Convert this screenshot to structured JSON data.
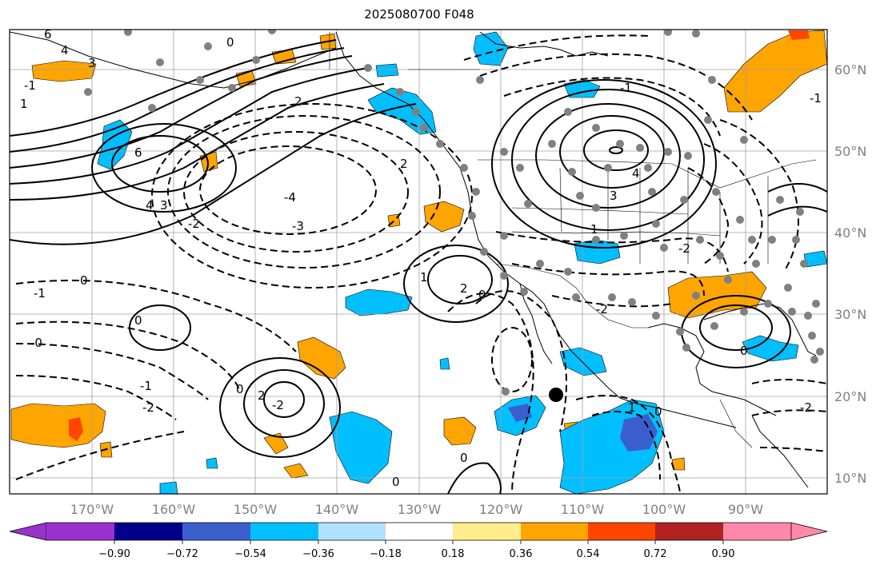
{
  "title": "2025080700 F048",
  "lat_labels": [
    "60°N",
    "50°N",
    "40°N",
    "30°N",
    "20°N",
    "10°N"
  ],
  "lon_labels": [
    "170°W",
    "160°W",
    "150°W",
    "140°W",
    "130°W",
    "120°W",
    "110°W",
    "100°W",
    "90°W"
  ],
  "colorbar": {
    "tick_labels": [
      "−0.90",
      "−0.72",
      "−0.54",
      "−0.36",
      "−0.18",
      "0.18",
      "0.36",
      "0.54",
      "0.72",
      "0.90"
    ],
    "colors": [
      "#9932cc",
      "#00008b",
      "#3a5fcd",
      "#00bfff",
      "#b0e2ff",
      "#ffffff",
      "#ffec8b",
      "#ffa500",
      "#ff4500",
      "#b22222",
      "#ff88aa"
    ]
  },
  "contour_labels": {
    "a": "4",
    "b": "3",
    "c": "6",
    "d": "0",
    "e": "2",
    "f": "1",
    "g": "-1",
    "h": "6",
    "i": "4",
    "j": "3",
    "k": "-2",
    "l": "-4",
    "m": "-3",
    "n": "2",
    "o": "-1",
    "p": "0",
    "q": "-1",
    "r": "0",
    "s": "0",
    "t": "-0",
    "u": "1",
    "v": "-2",
    "w": "0",
    "x": "2",
    "y": "2",
    "z": "-2",
    "aa": "1",
    "ab": "0",
    "ac": "0",
    "ad": "1",
    "ae": "-1",
    "af": "3",
    "ag": "4",
    "ah": "-2",
    "ai": "0",
    "aj": "0",
    "ak": "-2",
    "al": "-2",
    "am": "-1"
  },
  "marker": "black-dot"
}
